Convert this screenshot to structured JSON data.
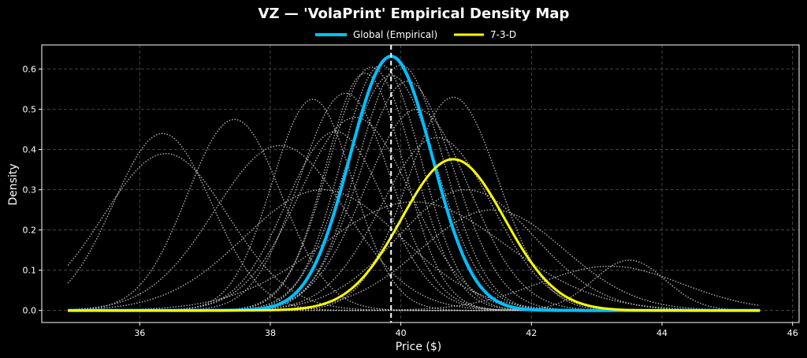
{
  "chart_data": {
    "type": "line",
    "title": "VZ — 'VolaPrint' Empirical Density Map",
    "xlabel": "Price ($)",
    "ylabel": "Density",
    "xlim": [
      34.5,
      46.1
    ],
    "ylim": [
      -0.03,
      0.66
    ],
    "x_ticks": [
      36,
      38,
      40,
      42,
      44,
      46
    ],
    "y_ticks": [
      0.0,
      0.1,
      0.2,
      0.3,
      0.4,
      0.5,
      0.6
    ],
    "x_tick_labels": [
      "36",
      "38",
      "40",
      "42",
      "44",
      "46"
    ],
    "y_tick_labels": [
      "0.0",
      "0.1",
      "0.2",
      "0.3",
      "0.4",
      "0.5",
      "0.6"
    ],
    "grid": true,
    "legend_position": "top-center",
    "x_range": [
      34.9,
      45.5
    ],
    "vertical_marker": {
      "x": 39.85,
      "color": "#ffffff",
      "style": "dashed"
    },
    "series": [
      {
        "name": "Global (Empirical)",
        "color": "#00bfff",
        "style": "solid",
        "kind": "gaussian",
        "mean": 39.85,
        "sd": 0.63,
        "peak": 0.632
      },
      {
        "name": "7-3-D",
        "color": "#ffff00",
        "style": "solid",
        "kind": "gaussian",
        "mean": 40.8,
        "sd": 0.79,
        "peak": 0.376
      }
    ],
    "background_series_color": "#cccccc",
    "background_series": [
      {
        "kind": "gaussian",
        "mean": 36.35,
        "sd": 0.75,
        "peak": 0.44
      },
      {
        "kind": "gaussian",
        "mean": 36.4,
        "sd": 0.95,
        "peak": 0.39
      },
      {
        "kind": "gaussian",
        "mean": 37.45,
        "sd": 0.72,
        "peak": 0.475
      },
      {
        "kind": "gaussian",
        "mean": 38.15,
        "sd": 1.0,
        "peak": 0.41
      },
      {
        "kind": "gaussian",
        "mean": 38.65,
        "sd": 0.62,
        "peak": 0.525
      },
      {
        "kind": "gaussian",
        "mean": 39.0,
        "sd": 0.75,
        "peak": 0.445
      },
      {
        "kind": "gaussian",
        "mean": 39.15,
        "sd": 0.7,
        "peak": 0.54
      },
      {
        "kind": "gaussian",
        "mean": 39.3,
        "sd": 0.85,
        "peak": 0.48
      },
      {
        "kind": "gaussian",
        "mean": 39.45,
        "sd": 0.6,
        "peak": 0.59
      },
      {
        "kind": "gaussian",
        "mean": 39.55,
        "sd": 0.65,
        "peak": 0.605
      },
      {
        "kind": "gaussian",
        "mean": 39.7,
        "sd": 0.62,
        "peak": 0.61
      },
      {
        "kind": "gaussian",
        "mean": 39.85,
        "sd": 0.7,
        "peak": 0.585
      },
      {
        "kind": "gaussian",
        "mean": 40.0,
        "sd": 0.66,
        "peak": 0.61
      },
      {
        "kind": "gaussian",
        "mean": 40.1,
        "sd": 0.72,
        "peak": 0.57
      },
      {
        "kind": "gaussian",
        "mean": 40.25,
        "sd": 0.8,
        "peak": 0.5
      },
      {
        "kind": "gaussian",
        "mean": 40.55,
        "sd": 0.85,
        "peak": 0.43
      },
      {
        "kind": "gaussian",
        "mean": 40.8,
        "sd": 0.7,
        "peak": 0.53
      },
      {
        "kind": "gaussian",
        "mean": 41.0,
        "sd": 1.05,
        "peak": 0.3
      },
      {
        "kind": "gaussian",
        "mean": 41.4,
        "sd": 1.1,
        "peak": 0.25
      },
      {
        "kind": "gaussian",
        "mean": 43.5,
        "sd": 0.55,
        "peak": 0.125
      },
      {
        "kind": "gaussian",
        "mean": 43.2,
        "sd": 1.1,
        "peak": 0.11
      },
      {
        "kind": "gaussian",
        "mean": 40.2,
        "sd": 1.4,
        "peak": 0.27
      },
      {
        "kind": "gaussian",
        "mean": 38.8,
        "sd": 1.2,
        "peak": 0.3
      }
    ]
  }
}
